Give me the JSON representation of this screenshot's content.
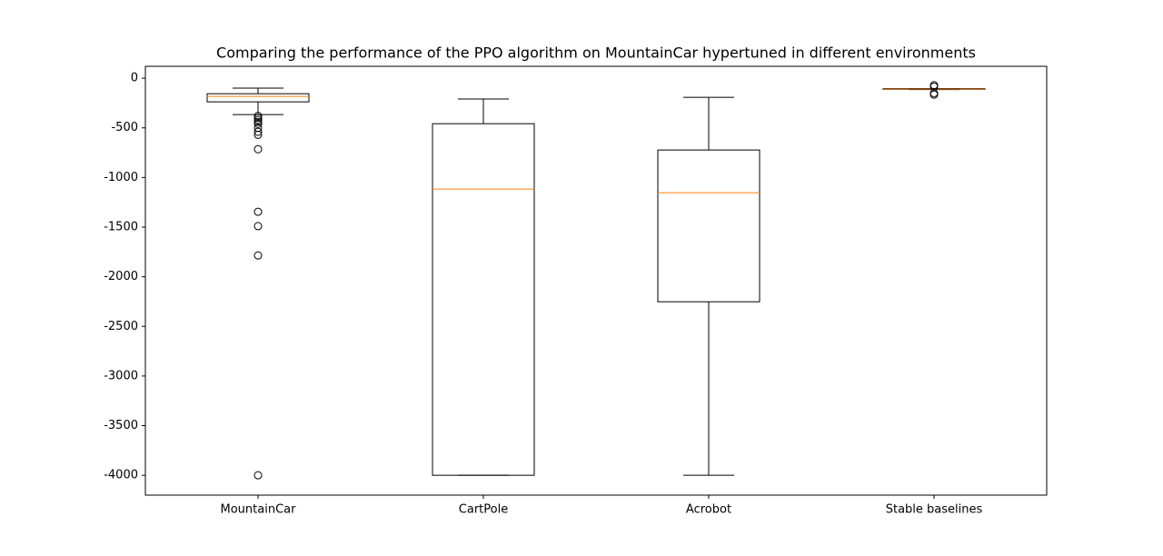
{
  "chart_data": {
    "type": "box",
    "title": "Comparing the performance of the PPO algorithm on MountainCar hypertuned in different environments",
    "categories": [
      "MountainCar",
      "CartPole",
      "Acrobot",
      "Stable baselines"
    ],
    "boxes": [
      {
        "whisker_low": -366,
        "q1": -238,
        "median": -183,
        "q3": -156,
        "whisker_high": -100,
        "outliers": [
          -380,
          -400,
          -420,
          -440,
          -460,
          -500,
          -540,
          -570,
          -715,
          -1345,
          -1490,
          -1785,
          -4000
        ]
      },
      {
        "whisker_low": -4000,
        "q1": -4000,
        "median": -1117,
        "q3": -458,
        "whisker_high": -210,
        "outliers": []
      },
      {
        "whisker_low": -4000,
        "q1": -2252,
        "median": -1153,
        "q3": -723,
        "whisker_high": -192,
        "outliers": []
      },
      {
        "whisker_low": -115,
        "q1": -112,
        "median": -110,
        "q3": -105,
        "whisker_high": -105,
        "outliers": [
          -70,
          -85,
          -150,
          -165
        ]
      }
    ],
    "box_color": "#000000",
    "median_color": "#ff7f0e",
    "ylim": [
      -4200,
      120
    ],
    "yticks": [
      0,
      -500,
      -1000,
      -1500,
      -2000,
      -2500,
      -3000,
      -3500,
      -4000
    ],
    "grid": false
  }
}
